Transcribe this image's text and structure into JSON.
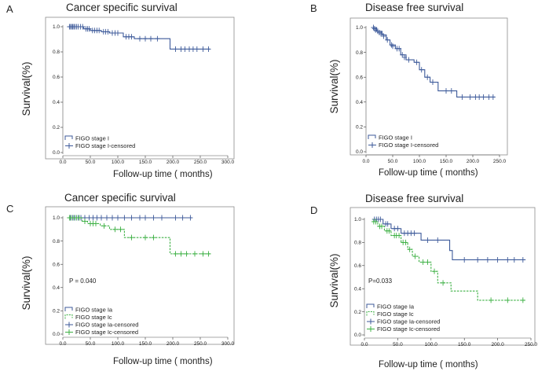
{
  "colors": {
    "blue": "#3d5a9a",
    "green": "#3cb043",
    "frame": "#8c8c8c",
    "text": "#222222"
  },
  "chart_data": [
    {
      "type": "line",
      "letter": "A",
      "title": "Cancer specific survival",
      "xlabel": "Follow-up time  ( months)",
      "ylabel": "Survival(%)",
      "xlim": [
        0,
        300
      ],
      "ylim": [
        0,
        1
      ],
      "xticks": [
        0,
        50,
        100,
        150,
        200,
        250,
        300
      ],
      "xtick_labels": [
        "0.0",
        "50.0",
        "100.0",
        "150.0",
        "200.0",
        "250.0",
        "300.0"
      ],
      "yticks": [
        0,
        0.2,
        0.4,
        0.6,
        0.8,
        1.0
      ],
      "ytick_labels": [
        "0.0",
        "0.2",
        "0.4",
        "0.6",
        "0.8",
        "1.0"
      ],
      "pvalue": "",
      "series": [
        {
          "name": "FIGO stage I",
          "censored_name": "FIGO stage I-censored",
          "color": "blue",
          "dashed": false,
          "steps": [
            [
              10,
              1.0
            ],
            [
              38,
              0.983
            ],
            [
              50,
              0.97
            ],
            [
              70,
              0.96
            ],
            [
              85,
              0.95
            ],
            [
              110,
              0.92
            ],
            [
              130,
              0.905
            ],
            [
              195,
              0.822
            ],
            [
              268,
              0.822
            ]
          ],
          "censored": [
            [
              12,
              1.0
            ],
            [
              14,
              1.0
            ],
            [
              16,
              1.0
            ],
            [
              18,
              1.0
            ],
            [
              20,
              1.0
            ],
            [
              22,
              1.0
            ],
            [
              25,
              1.0
            ],
            [
              28,
              1.0
            ],
            [
              32,
              1.0
            ],
            [
              36,
              1.0
            ],
            [
              42,
              0.983
            ],
            [
              45,
              0.983
            ],
            [
              48,
              0.983
            ],
            [
              54,
              0.97
            ],
            [
              58,
              0.97
            ],
            [
              62,
              0.97
            ],
            [
              66,
              0.97
            ],
            [
              74,
              0.96
            ],
            [
              78,
              0.96
            ],
            [
              82,
              0.96
            ],
            [
              90,
              0.95
            ],
            [
              95,
              0.95
            ],
            [
              100,
              0.95
            ],
            [
              115,
              0.92
            ],
            [
              120,
              0.92
            ],
            [
              125,
              0.92
            ],
            [
              140,
              0.905
            ],
            [
              150,
              0.905
            ],
            [
              160,
              0.905
            ],
            [
              172,
              0.905
            ],
            [
              205,
              0.822
            ],
            [
              215,
              0.822
            ],
            [
              222,
              0.822
            ],
            [
              230,
              0.822
            ],
            [
              237,
              0.822
            ],
            [
              244,
              0.822
            ],
            [
              255,
              0.822
            ],
            [
              265,
              0.822
            ]
          ]
        }
      ],
      "legend": [
        {
          "label": "FIGO stage I",
          "series": 0,
          "kind": "step"
        },
        {
          "label": "FIGO stage I-censored",
          "series": 0,
          "kind": "censor"
        }
      ]
    },
    {
      "type": "line",
      "letter": "B",
      "title": "Disease free survival",
      "xlabel": "Follow-up time  ( months)",
      "ylabel": "Survival(%)",
      "xlim": [
        0,
        250
      ],
      "ylim": [
        0,
        1
      ],
      "xticks": [
        0,
        50,
        100,
        150,
        200,
        250
      ],
      "xtick_labels": [
        "0.0",
        "50.0",
        "100.0",
        "150.0",
        "200.0",
        "250.0"
      ],
      "yticks": [
        0,
        0.2,
        0.4,
        0.6,
        0.8,
        1.0
      ],
      "ytick_labels": [
        "0.0",
        "0.2",
        "0.4",
        "0.6",
        "0.8",
        "1.0"
      ],
      "pvalue": "",
      "series": [
        {
          "name": "FIGO stage I",
          "censored_name": "FIGO stage I-censored",
          "color": "blue",
          "dashed": false,
          "steps": [
            [
              12,
              1.0
            ],
            [
              20,
              0.97
            ],
            [
              30,
              0.94
            ],
            [
              38,
              0.9
            ],
            [
              45,
              0.86
            ],
            [
              55,
              0.83
            ],
            [
              65,
              0.78
            ],
            [
              75,
              0.74
            ],
            [
              90,
              0.72
            ],
            [
              100,
              0.66
            ],
            [
              110,
              0.6
            ],
            [
              120,
              0.56
            ],
            [
              135,
              0.49
            ],
            [
              170,
              0.44
            ],
            [
              242,
              0.44
            ]
          ],
          "censored": [
            [
              14,
              1.0
            ],
            [
              16,
              0.99
            ],
            [
              18,
              0.98
            ],
            [
              22,
              0.97
            ],
            [
              25,
              0.96
            ],
            [
              28,
              0.95
            ],
            [
              33,
              0.93
            ],
            [
              40,
              0.9
            ],
            [
              48,
              0.86
            ],
            [
              50,
              0.85
            ],
            [
              58,
              0.83
            ],
            [
              62,
              0.83
            ],
            [
              68,
              0.78
            ],
            [
              72,
              0.76
            ],
            [
              80,
              0.74
            ],
            [
              95,
              0.72
            ],
            [
              104,
              0.66
            ],
            [
              115,
              0.6
            ],
            [
              125,
              0.56
            ],
            [
              150,
              0.49
            ],
            [
              160,
              0.49
            ],
            [
              180,
              0.44
            ],
            [
              195,
              0.44
            ],
            [
              205,
              0.44
            ],
            [
              212,
              0.44
            ],
            [
              220,
              0.44
            ],
            [
              230,
              0.44
            ],
            [
              238,
              0.44
            ]
          ]
        }
      ],
      "legend": [
        {
          "label": "FIGO stage I",
          "series": 0,
          "kind": "step"
        },
        {
          "label": "FIGO stage I-censored",
          "series": 0,
          "kind": "censor"
        }
      ]
    },
    {
      "type": "line",
      "letter": "C",
      "title": "Cancer specific survival",
      "xlabel": "Follow-up time  ( months)",
      "ylabel": "Survival(%)",
      "xlim": [
        0,
        300
      ],
      "ylim": [
        0,
        1
      ],
      "xticks": [
        0,
        50,
        100,
        150,
        200,
        250,
        300
      ],
      "xtick_labels": [
        "0.0",
        "50.0",
        "100.0",
        "150.0",
        "200.0",
        "250.0",
        "300.0"
      ],
      "yticks": [
        0,
        0.2,
        0.4,
        0.6,
        0.8,
        1.0
      ],
      "ytick_labels": [
        "0.0",
        "0.2",
        "0.4",
        "0.6",
        "0.8",
        "1.0"
      ],
      "pvalue": "P = 0.040",
      "series": [
        {
          "name": "FIGO stage Ia",
          "censored_name": "FIGO stage Ia-censored",
          "color": "blue",
          "dashed": false,
          "steps": [
            [
              10,
              1.0
            ],
            [
              235,
              1.0
            ]
          ],
          "censored": [
            [
              14,
              1.0
            ],
            [
              18,
              1.0
            ],
            [
              22,
              1.0
            ],
            [
              28,
              1.0
            ],
            [
              33,
              1.0
            ],
            [
              40,
              1.0
            ],
            [
              48,
              1.0
            ],
            [
              55,
              1.0
            ],
            [
              62,
              1.0
            ],
            [
              70,
              1.0
            ],
            [
              80,
              1.0
            ],
            [
              90,
              1.0
            ],
            [
              100,
              1.0
            ],
            [
              112,
              1.0
            ],
            [
              125,
              1.0
            ],
            [
              140,
              1.0
            ],
            [
              150,
              1.0
            ],
            [
              165,
              1.0
            ],
            [
              180,
              1.0
            ],
            [
              205,
              1.0
            ],
            [
              218,
              1.0
            ],
            [
              232,
              1.0
            ]
          ]
        },
        {
          "name": "FIGO stage Ic",
          "censored_name": "FIGO stage Ic-censored",
          "color": "green",
          "dashed": true,
          "steps": [
            [
              10,
              1.0
            ],
            [
              35,
              0.97
            ],
            [
              45,
              0.95
            ],
            [
              68,
              0.93
            ],
            [
              85,
              0.9
            ],
            [
              112,
              0.83
            ],
            [
              195,
              0.69
            ],
            [
              268,
              0.69
            ]
          ],
          "censored": [
            [
              12,
              1.0
            ],
            [
              15,
              1.0
            ],
            [
              20,
              1.0
            ],
            [
              25,
              1.0
            ],
            [
              30,
              1.0
            ],
            [
              40,
              0.97
            ],
            [
              50,
              0.95
            ],
            [
              55,
              0.95
            ],
            [
              60,
              0.95
            ],
            [
              75,
              0.93
            ],
            [
              95,
              0.9
            ],
            [
              105,
              0.9
            ],
            [
              125,
              0.83
            ],
            [
              150,
              0.83
            ],
            [
              165,
              0.83
            ],
            [
              205,
              0.69
            ],
            [
              215,
              0.69
            ],
            [
              225,
              0.69
            ],
            [
              240,
              0.69
            ],
            [
              255,
              0.69
            ],
            [
              265,
              0.69
            ]
          ]
        }
      ],
      "legend": [
        {
          "label": "FIGO stage Ia",
          "series": 0,
          "kind": "step"
        },
        {
          "label": "FIGO stage Ic",
          "series": 1,
          "kind": "step"
        },
        {
          "label": "FIGO stage Ia-censored",
          "series": 0,
          "kind": "censor"
        },
        {
          "label": "FIGO stage Ic-censored",
          "series": 1,
          "kind": "censor"
        }
      ]
    },
    {
      "type": "line",
      "letter": "D",
      "title": "Disease free survival",
      "xlabel": "Follow-up time  ( months)",
      "ylabel": "Survival(%)",
      "xlim": [
        0,
        250
      ],
      "ylim": [
        0,
        1
      ],
      "xticks": [
        0,
        50,
        100,
        150,
        200,
        250
      ],
      "xtick_labels": [
        "0.0",
        "50.0",
        "100.0",
        "150.0",
        "200.0",
        "250.0"
      ],
      "yticks": [
        0,
        0.2,
        0.4,
        0.6,
        0.8,
        1.0
      ],
      "ytick_labels": [
        "0.0",
        "0.2",
        "0.4",
        "0.6",
        "0.8",
        "1.0"
      ],
      "pvalue": "P=0.033",
      "series": [
        {
          "name": "FIGO stage Ia",
          "censored_name": "FIGO stage Ia-censored",
          "color": "blue",
          "dashed": false,
          "steps": [
            [
              12,
              1.0
            ],
            [
              28,
              0.96
            ],
            [
              40,
              0.92
            ],
            [
              55,
              0.88
            ],
            [
              85,
              0.82
            ],
            [
              128,
              0.73
            ],
            [
              132,
              0.65
            ],
            [
              242,
              0.65
            ]
          ],
          "censored": [
            [
              15,
              1.0
            ],
            [
              18,
              1.0
            ],
            [
              21,
              1.0
            ],
            [
              24,
              1.0
            ],
            [
              32,
              0.96
            ],
            [
              35,
              0.96
            ],
            [
              45,
              0.92
            ],
            [
              50,
              0.92
            ],
            [
              60,
              0.88
            ],
            [
              65,
              0.88
            ],
            [
              70,
              0.88
            ],
            [
              75,
              0.88
            ],
            [
              95,
              0.82
            ],
            [
              110,
              0.82
            ],
            [
              150,
              0.65
            ],
            [
              170,
              0.65
            ],
            [
              185,
              0.65
            ],
            [
              200,
              0.65
            ],
            [
              215,
              0.65
            ],
            [
              225,
              0.65
            ],
            [
              238,
              0.65
            ]
          ]
        },
        {
          "name": "FIGO stage Ic",
          "censored_name": "FIGO stage Ic-censored",
          "color": "green",
          "dashed": true,
          "steps": [
            [
              12,
              0.98
            ],
            [
              20,
              0.94
            ],
            [
              30,
              0.9
            ],
            [
              40,
              0.86
            ],
            [
              55,
              0.8
            ],
            [
              65,
              0.74
            ],
            [
              72,
              0.68
            ],
            [
              82,
              0.63
            ],
            [
              100,
              0.55
            ],
            [
              110,
              0.45
            ],
            [
              130,
              0.38
            ],
            [
              170,
              0.3
            ],
            [
              242,
              0.3
            ]
          ],
          "censored": [
            [
              14,
              0.98
            ],
            [
              17,
              0.98
            ],
            [
              23,
              0.94
            ],
            [
              26,
              0.94
            ],
            [
              34,
              0.9
            ],
            [
              37,
              0.9
            ],
            [
              45,
              0.86
            ],
            [
              48,
              0.86
            ],
            [
              52,
              0.86
            ],
            [
              58,
              0.8
            ],
            [
              62,
              0.8
            ],
            [
              68,
              0.74
            ],
            [
              76,
              0.68
            ],
            [
              88,
              0.63
            ],
            [
              95,
              0.63
            ],
            [
              105,
              0.55
            ],
            [
              118,
              0.45
            ],
            [
              190,
              0.3
            ],
            [
              215,
              0.3
            ],
            [
              238,
              0.3
            ]
          ]
        }
      ],
      "legend": [
        {
          "label": "FIGO stage Ia",
          "series": 0,
          "kind": "step"
        },
        {
          "label": "FIGO stage Ic",
          "series": 1,
          "kind": "step"
        },
        {
          "label": "FIGO stage Ia-censored",
          "series": 0,
          "kind": "censor"
        },
        {
          "label": "FIGO stage Ic-censored",
          "series": 1,
          "kind": "censor"
        }
      ]
    }
  ]
}
